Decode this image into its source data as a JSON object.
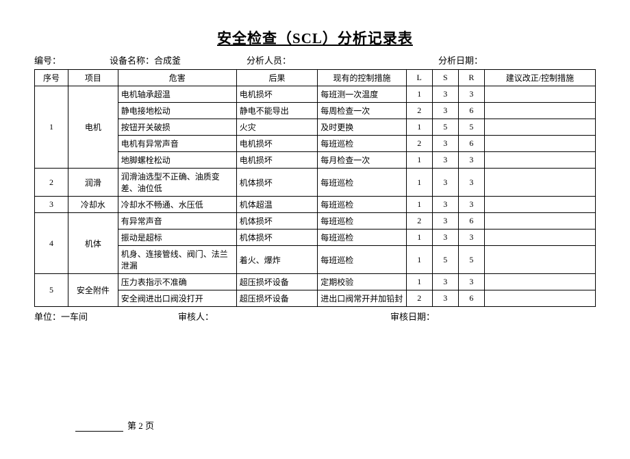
{
  "title": "安全检查（SCL）分析记录表",
  "header": {
    "no_label": "编号：",
    "equip_label": "设备名称：",
    "equip_value": "合成釜",
    "analyst_label": "分析人员：",
    "date_label": "分析日期："
  },
  "columns": {
    "seq": "序号",
    "item": "项目",
    "hazard": "危害",
    "conseq": "后果",
    "ctrl": "现有的控制措施",
    "l": "L",
    "s": "S",
    "r": "R",
    "sugg": "建议改正/控制措施"
  },
  "groups": [
    {
      "seq": "1",
      "item": "电机",
      "rows": [
        {
          "hazard": "电机轴承超温",
          "conseq": "电机损坏",
          "ctrl": "每班测一次温度",
          "l": "1",
          "s": "3",
          "r": "3",
          "sugg": ""
        },
        {
          "hazard": "静电接地松动",
          "conseq": "静电不能导出",
          "ctrl": "每周检查一次",
          "l": "2",
          "s": "3",
          "r": "6",
          "sugg": ""
        },
        {
          "hazard": "按钮开关破损",
          "conseq": "火灾",
          "ctrl": "及时更换",
          "l": "1",
          "s": "5",
          "r": "5",
          "sugg": ""
        },
        {
          "hazard": "电机有异常声音",
          "conseq": "电机损坏",
          "ctrl": "每班巡检",
          "l": "2",
          "s": "3",
          "r": "6",
          "sugg": ""
        },
        {
          "hazard": "地脚螺栓松动",
          "conseq": "电机损坏",
          "ctrl": "每月检查一次",
          "l": "1",
          "s": "3",
          "r": "3",
          "sugg": ""
        }
      ]
    },
    {
      "seq": "2",
      "item": "润滑",
      "rows": [
        {
          "hazard": "润滑油选型不正确、油质变差、油位低",
          "conseq": "机体损坏",
          "ctrl": "每班巡检",
          "l": "1",
          "s": "3",
          "r": "3",
          "sugg": ""
        }
      ]
    },
    {
      "seq": "3",
      "item": "冷却水",
      "rows": [
        {
          "hazard": "冷却水不畅通、水压低",
          "conseq": "机体超温",
          "ctrl": "每班巡检",
          "l": "1",
          "s": "3",
          "r": "3",
          "sugg": ""
        }
      ]
    },
    {
      "seq": "4",
      "item": "机体",
      "rows": [
        {
          "hazard": "有异常声音",
          "conseq": "机体损坏",
          "ctrl": "每班巡检",
          "l": "2",
          "s": "3",
          "r": "6",
          "sugg": ""
        },
        {
          "hazard": "振动是超标",
          "conseq": "机体损坏",
          "ctrl": "每班巡检",
          "l": "1",
          "s": "3",
          "r": "3",
          "sugg": ""
        },
        {
          "hazard": "机身、连接管线、阀门、法兰泄漏",
          "conseq": "着火、爆炸",
          "ctrl": "每班巡检",
          "l": "1",
          "s": "5",
          "r": "5",
          "sugg": ""
        }
      ]
    },
    {
      "seq": "5",
      "item": "安全附件",
      "rows": [
        {
          "hazard": "压力表指示不准确",
          "conseq": "超压损坏设备",
          "ctrl": "定期校验",
          "l": "1",
          "s": "3",
          "r": "3",
          "sugg": ""
        },
        {
          "hazard": "安全阀进出口阀没打开",
          "conseq": "超压损坏设备",
          "ctrl": "进出口阀常开并加铅封",
          "l": "2",
          "s": "3",
          "r": "6",
          "sugg": ""
        }
      ]
    }
  ],
  "footer": {
    "unit_label": "单位：",
    "unit_value": "一车间",
    "reviewer_label": "审核人：",
    "review_date_label": "审核日期："
  },
  "page": {
    "label_prefix": "第 ",
    "num": "2",
    "label_suffix": " 页"
  }
}
